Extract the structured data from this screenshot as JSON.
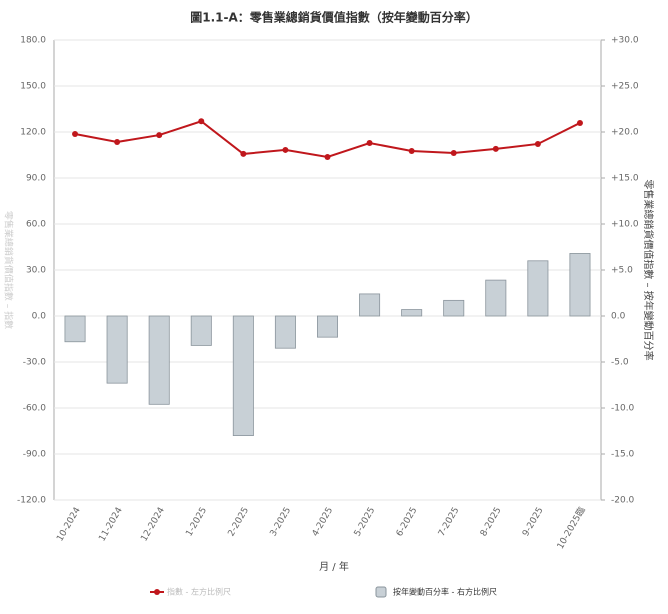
{
  "chart_data": {
    "type": "combo",
    "title": "圖1.1-A：零售業總銷貨價值指數（按年變動百分率）",
    "x_label": "月 / 年",
    "y_label": "零售業總銷貨價值指數 – 指數",
    "y2_label": "零售業總銷貨價值指數 – 按年變動百分率",
    "categories": [
      "10-2024",
      "11-2024",
      "12-2024",
      "1-2025",
      "2-2025",
      "3-2025",
      "4-2025",
      "5-2025",
      "6-2025",
      "7-2025",
      "8-2025",
      "9-2025",
      "10-2025臨"
    ],
    "series": [
      {
        "name": "指數 - 左方比例尺",
        "type": "line",
        "color": "#c0171c",
        "values": [
          118.7,
          113.5,
          118.0,
          127.0,
          105.7,
          108.3,
          103.7,
          112.8,
          107.6,
          106.3,
          109.0,
          112.2,
          125.9
        ]
      },
      {
        "name": "按年變動百分率 - 右方比例尺",
        "type": "bar",
        "axis": "y2",
        "color": "#c8d0d6",
        "values": [
          -2.8,
          -7.3,
          -9.6,
          -3.2,
          -13.0,
          -3.5,
          -2.3,
          2.4,
          0.7,
          1.7,
          3.9,
          6.0,
          6.8
        ]
      }
    ],
    "ylim": [
      -120,
      180
    ],
    "yticks": [
      {
        "value": -120,
        "label": "-120.0"
      },
      {
        "value": -90,
        "label": "-90.0"
      },
      {
        "value": -60,
        "label": "-60.0"
      },
      {
        "value": -30,
        "label": "-30.0"
      },
      {
        "value": 0,
        "label": "0.0"
      },
      {
        "value": 30,
        "label": "30.0"
      },
      {
        "value": 60,
        "label": "60.0"
      },
      {
        "value": 90,
        "label": "90.0"
      },
      {
        "value": 120,
        "label": "120.0"
      },
      {
        "value": 150,
        "label": "150.0"
      },
      {
        "value": 180,
        "label": "180.0"
      }
    ],
    "y2lim": [
      -20,
      30
    ],
    "y2ticks": [
      {
        "value": -20,
        "label": "-20.0"
      },
      {
        "value": -15,
        "label": "-15.0"
      },
      {
        "value": -10,
        "label": "-10.0"
      },
      {
        "value": -5,
        "label": "-5.0"
      },
      {
        "value": 0,
        "label": "0.0"
      },
      {
        "value": 5,
        "label": "+5.0"
      },
      {
        "value": 10,
        "label": "+10.0"
      },
      {
        "value": 15,
        "label": "+15.0"
      },
      {
        "value": 20,
        "label": "+20.0"
      },
      {
        "value": 25,
        "label": "+25.0"
      },
      {
        "value": 30,
        "label": "+30.0"
      }
    ],
    "grid": true
  }
}
